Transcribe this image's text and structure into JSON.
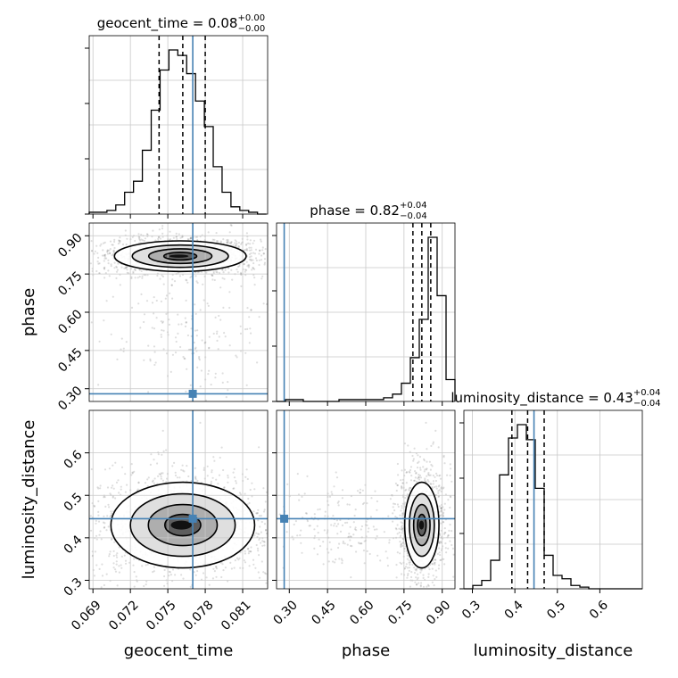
{
  "chart_data": {
    "type": "corner",
    "parameters": [
      {
        "name": "geocent_time",
        "title_value": "0.08",
        "err_plus": "+0.00",
        "err_minus": "−0.00",
        "range": [
          0.0687,
          0.083
        ],
        "ticks": [
          0.069,
          0.072,
          0.075,
          0.078,
          0.081
        ],
        "tick_labels": [
          "0.069",
          "0.072",
          "0.075",
          "0.078",
          "0.081"
        ],
        "truth": 0.077,
        "quantiles": [
          0.0743,
          0.0762,
          0.078
        ],
        "hist_edges_start": 0.0687,
        "hist_bin_width": 0.00071,
        "hist_counts": [
          1,
          1,
          2,
          5,
          12,
          18,
          35,
          57,
          79,
          90,
          87,
          77,
          62,
          48,
          26,
          12,
          4,
          2,
          1,
          0
        ]
      },
      {
        "name": "phase",
        "title_value": "0.82",
        "err_plus": "+0.04",
        "err_minus": "−0.04",
        "range": [
          0.25,
          0.95
        ],
        "ticks": [
          0.3,
          0.45,
          0.6,
          0.75,
          0.9
        ],
        "tick_labels": [
          "0.30",
          "0.45",
          "0.60",
          "0.75",
          "0.90"
        ],
        "truth": 0.28,
        "quantiles": [
          0.785,
          0.82,
          0.855
        ],
        "hist_edges_start": 0.25,
        "hist_bin_width": 0.035,
        "hist_counts": [
          0,
          1,
          1,
          0,
          0,
          0,
          0,
          1,
          1,
          1,
          1,
          1,
          2,
          4,
          10,
          24,
          45,
          90,
          58,
          12
        ]
      },
      {
        "name": "luminosity_distance",
        "title_value": "0.43",
        "err_plus": "+0.04",
        "err_minus": "−0.04",
        "range": [
          0.28,
          0.7
        ],
        "ticks": [
          0.3,
          0.4,
          0.5,
          0.6
        ],
        "tick_labels": [
          "0.3",
          "0.4",
          "0.5",
          "0.6"
        ],
        "truth": 0.445,
        "quantiles": [
          0.393,
          0.43,
          0.469
        ],
        "hist_edges_start": 0.28,
        "hist_bin_width": 0.021,
        "hist_counts": [
          0,
          2,
          5,
          17,
          68,
          90,
          98,
          89,
          60,
          20,
          8,
          6,
          2,
          1,
          0,
          0,
          0,
          0,
          0,
          0
        ]
      }
    ],
    "pair_plots": [
      {
        "x_param": 0,
        "y_param": 1,
        "center": [
          0.076,
          0.82
        ],
        "spread": [
          0.0022,
          0.025
        ],
        "tail": [
          0.0765,
          0.5,
          0.0035,
          0.14
        ]
      },
      {
        "x_param": 0,
        "y_param": 2,
        "center": [
          0.0762,
          0.43
        ],
        "spread": [
          0.0024,
          0.042
        ],
        "tail": null
      },
      {
        "x_param": 1,
        "y_param": 2,
        "center": [
          0.82,
          0.43
        ],
        "spread": [
          0.028,
          0.042
        ],
        "tail": [
          0.5,
          0.43,
          0.14,
          0.05
        ]
      }
    ],
    "xlabels": [
      "geocent_time",
      "phase",
      "luminosity_distance"
    ],
    "ylabels": [
      "phase",
      "luminosity_distance"
    ],
    "truth_color": "#4682b4",
    "grid": true
  }
}
